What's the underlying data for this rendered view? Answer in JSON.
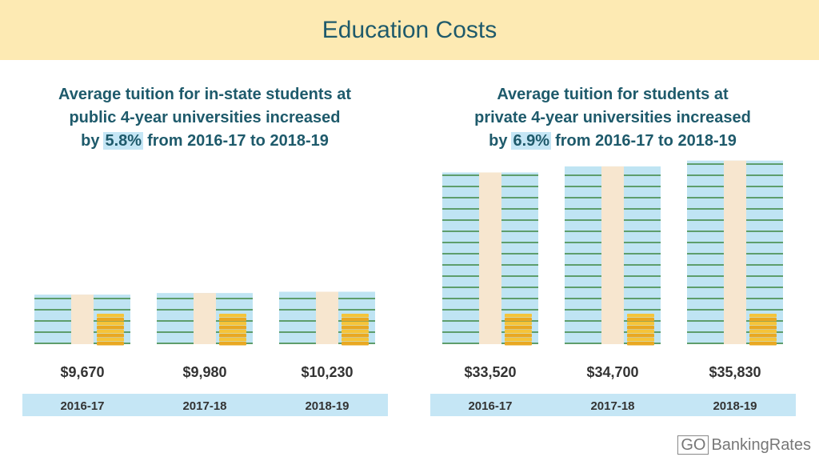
{
  "title": "Education Costs",
  "logo": {
    "mark": "GO",
    "text": "BankingRates"
  },
  "chart_data": [
    {
      "type": "pictograph",
      "title": {
        "lines": [
          "Average tuition for in-state students at",
          "public 4-year universities increased"
        ],
        "before": "by",
        "highlight": "5.8%",
        "after": "from 2016-17 to 2018-19"
      },
      "categories": [
        "2016-17",
        "2017-18",
        "2018-19"
      ],
      "values": [
        9670,
        9980,
        10230
      ],
      "value_labels": [
        "$9,670",
        "$9,980",
        "$10,230"
      ]
    },
    {
      "type": "pictograph",
      "title": {
        "lines": [
          "Average tuition for students at",
          "private 4-year universities increased"
        ],
        "before": "by",
        "highlight": "6.9%",
        "after": "from 2016-17 to 2018-19"
      },
      "categories": [
        "2016-17",
        "2017-18",
        "2018-19"
      ],
      "values": [
        33520,
        34700,
        35830
      ],
      "value_labels": [
        "$33,520",
        "$34,700",
        "$35,830"
      ]
    }
  ]
}
